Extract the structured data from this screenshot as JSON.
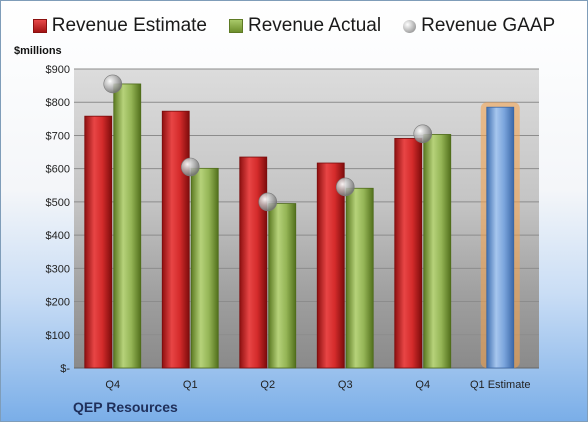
{
  "legend": {
    "estimate_label": "Revenue Estimate",
    "actual_label": "Revenue Actual",
    "gaap_label": "Revenue GAAP"
  },
  "unit_label": "$millions",
  "company": "QEP Resources",
  "colors": {
    "estimate": "#c62020",
    "actual": "#8cae4a",
    "gaap": "#b5b5b5",
    "forecast": "#6f9bd6",
    "forecast_glow": "#f5a24a"
  },
  "chart_data": {
    "type": "bar",
    "categories": [
      "Q4",
      "Q1",
      "Q2",
      "Q3",
      "Q4",
      "Q1 Estimate"
    ],
    "series": [
      {
        "name": "Revenue Estimate",
        "values": [
          758,
          773,
          635,
          617,
          691,
          null
        ]
      },
      {
        "name": "Revenue Actual",
        "values": [
          855,
          601,
          495,
          541,
          703,
          null
        ]
      },
      {
        "name": "Revenue GAAP",
        "values": [
          855,
          605,
          500,
          545,
          705,
          null
        ]
      }
    ],
    "forecast": {
      "category": "Q1 Estimate",
      "value": 785
    },
    "ylim": [
      0,
      900
    ],
    "yticks": [
      "$-",
      "$100",
      "$200",
      "$300",
      "$400",
      "$500",
      "$600",
      "$700",
      "$800",
      "$900"
    ],
    "ylabel": "$millions",
    "grid": true,
    "legend_position": "top"
  }
}
